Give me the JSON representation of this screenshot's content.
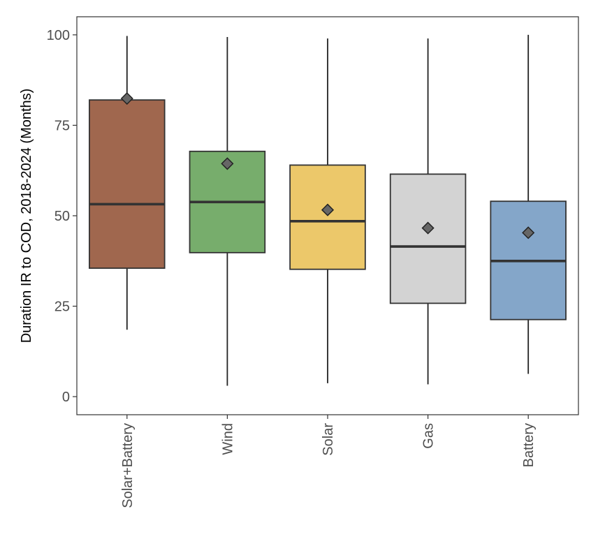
{
  "chart_data": {
    "type": "boxplot",
    "ylabel": "Duration IR to COD, 2018-2024 (Months)",
    "xlabel": "",
    "ylim": [
      -5,
      105
    ],
    "yticks": [
      0,
      25,
      50,
      75,
      100
    ],
    "grid": false,
    "legend": "none",
    "categories": [
      "Solar+Battery",
      "Wind",
      "Solar",
      "Gas",
      "Battery"
    ],
    "series": [
      {
        "category": "Solar+Battery",
        "min": 18.5,
        "q1": 35.5,
        "median": 53.2,
        "q3": 82.0,
        "max": 99.7,
        "mean": 82.4,
        "color": "#a0674e"
      },
      {
        "category": "Wind",
        "min": 3.0,
        "q1": 39.8,
        "median": 53.8,
        "q3": 67.8,
        "max": 99.4,
        "mean": 64.4,
        "color": "#77ad6c"
      },
      {
        "category": "Solar",
        "min": 3.7,
        "q1": 35.2,
        "median": 48.5,
        "q3": 64.0,
        "max": 99.0,
        "mean": 51.6,
        "color": "#ecc86a"
      },
      {
        "category": "Gas",
        "min": 3.4,
        "q1": 25.8,
        "median": 41.5,
        "q3": 61.5,
        "max": 99.0,
        "mean": 46.6,
        "color": "#d3d3d3"
      },
      {
        "category": "Battery",
        "min": 6.3,
        "q1": 21.3,
        "median": 37.5,
        "q3": 54.0,
        "max": 100.0,
        "mean": 45.3,
        "color": "#84a6c9"
      }
    ]
  }
}
